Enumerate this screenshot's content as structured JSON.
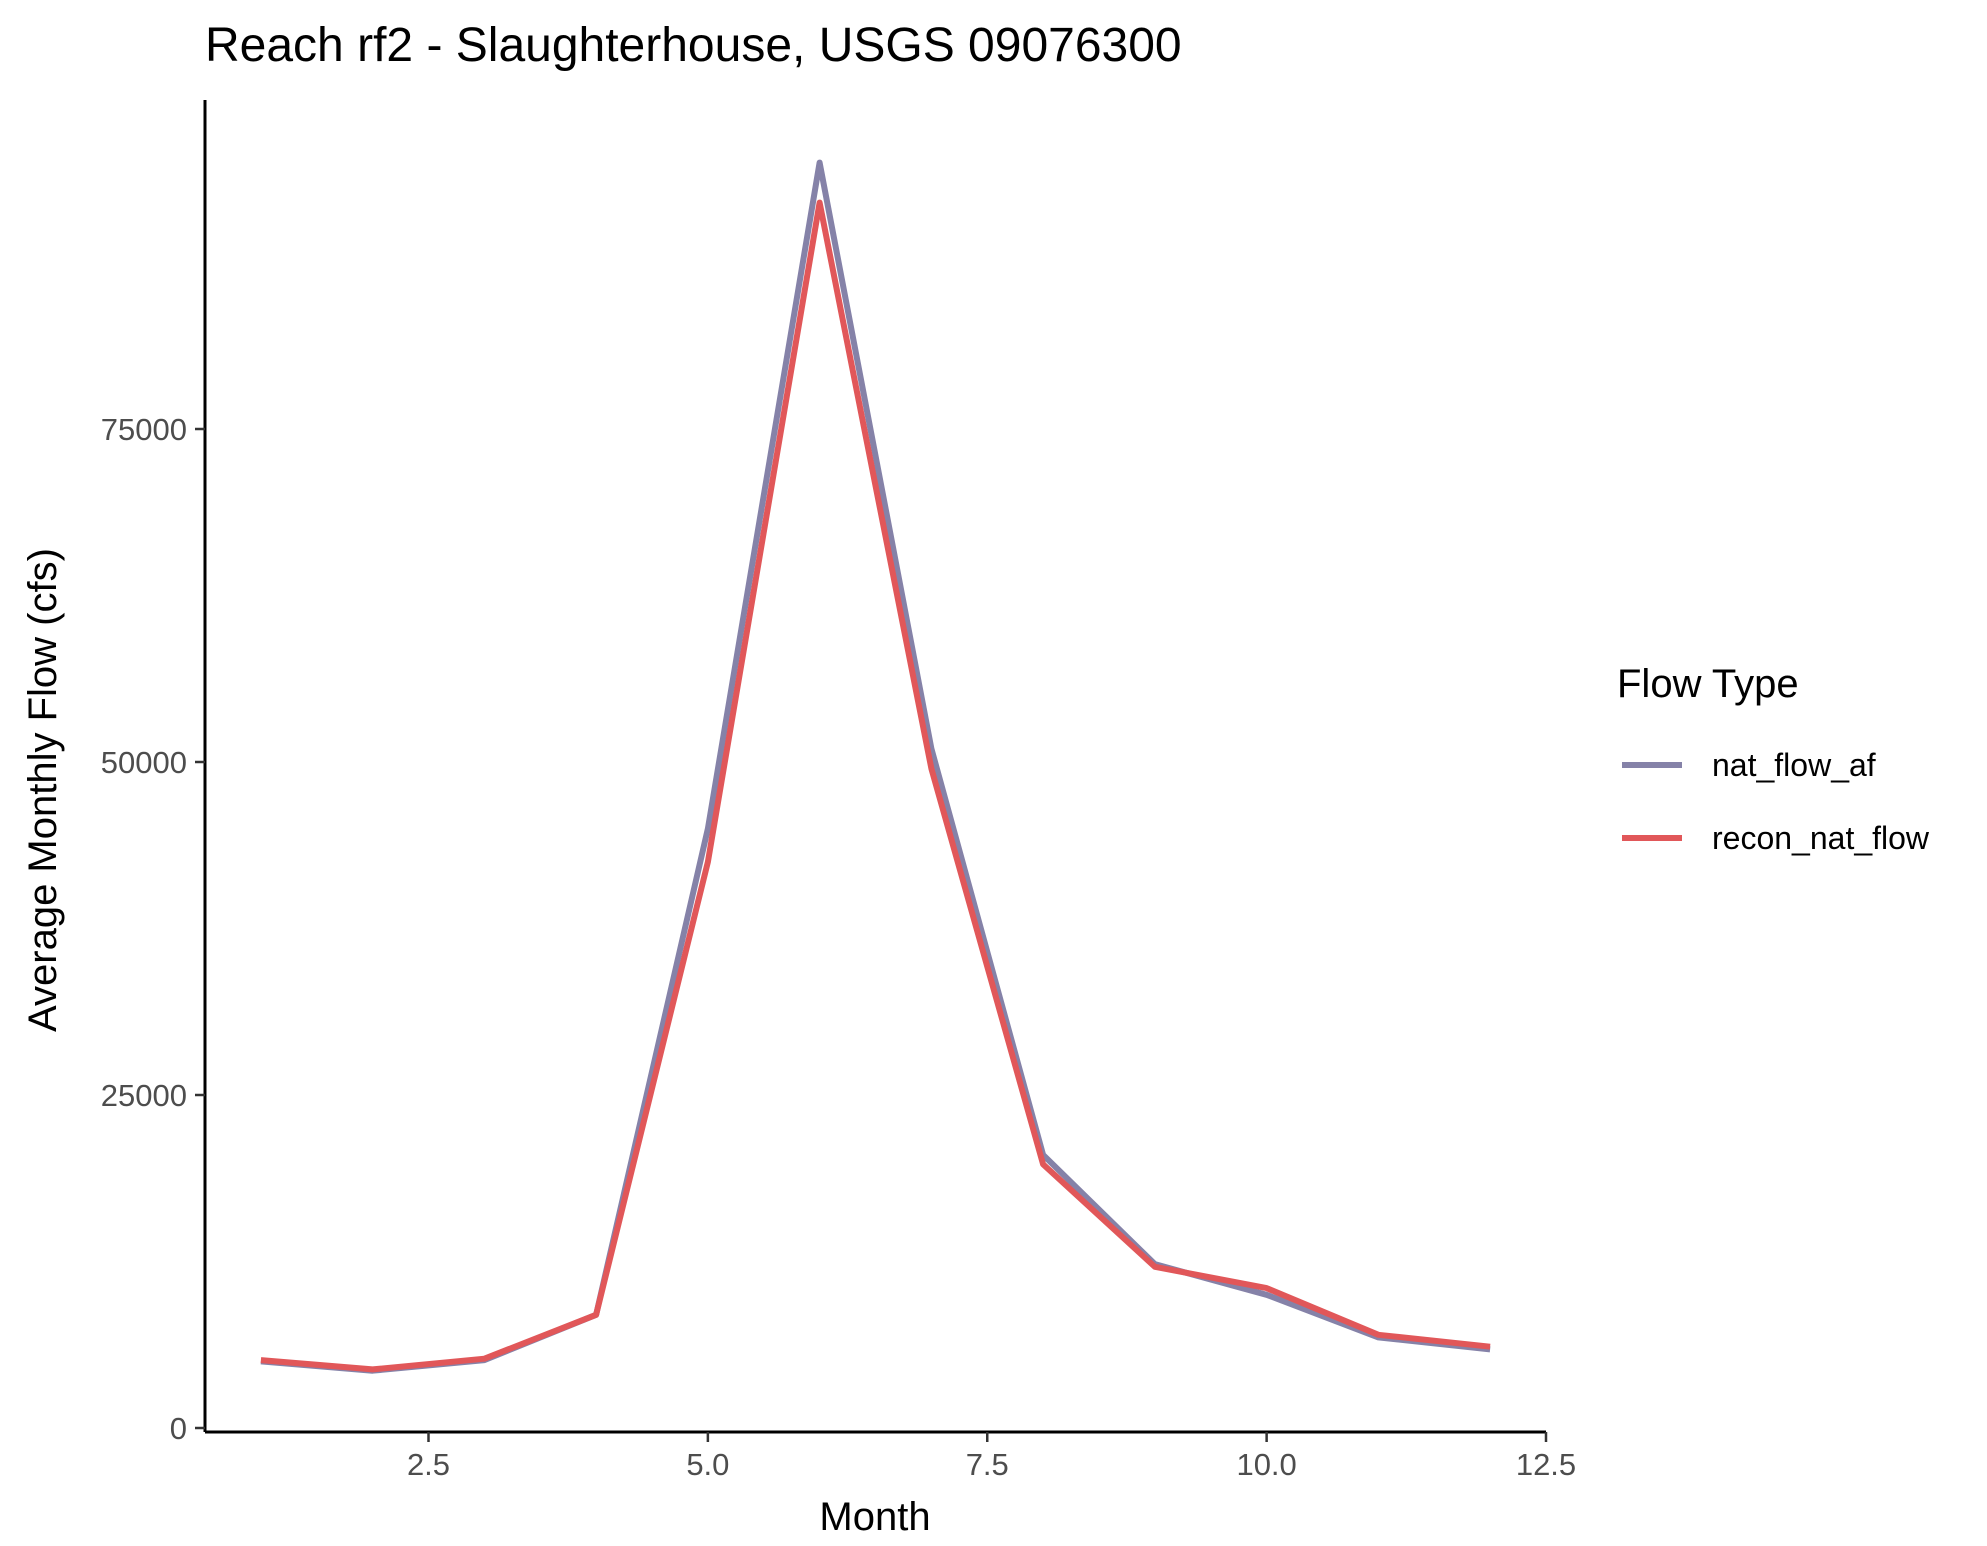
{
  "chart_data": {
    "type": "line",
    "title": "Reach rf2 - Slaughterhouse, USGS 09076300",
    "xlabel": "Month",
    "ylabel": "Average Monthly Flow (cfs)",
    "xlim": [
      0.5,
      12.5
    ],
    "ylim": [
      0,
      100000
    ],
    "xticks": [
      2.5,
      5.0,
      7.5,
      10.0,
      12.5
    ],
    "xtick_labels": [
      "2.5",
      "5.0",
      "7.5",
      "10.0",
      "12.5"
    ],
    "yticks": [
      0,
      25000,
      50000,
      75000
    ],
    "ytick_labels": [
      "0",
      "25000",
      "50000",
      "75000"
    ],
    "grid": false,
    "legend": {
      "title": "Flow Type",
      "placement": "right"
    },
    "x": [
      1,
      2,
      3,
      4,
      5,
      6,
      7,
      8,
      9,
      10,
      11,
      12
    ],
    "series": [
      {
        "name": "nat_flow_af",
        "color": "#8582a8",
        "values": [
          5000,
          4300,
          5100,
          8500,
          45000,
          95000,
          51000,
          20500,
          12300,
          10000,
          6800,
          5900
        ]
      },
      {
        "name": "recon_nat_flow",
        "color": "#e15759",
        "values": [
          5100,
          4400,
          5200,
          8500,
          42500,
          92000,
          49500,
          19800,
          12100,
          10500,
          7000,
          6100
        ]
      }
    ]
  }
}
